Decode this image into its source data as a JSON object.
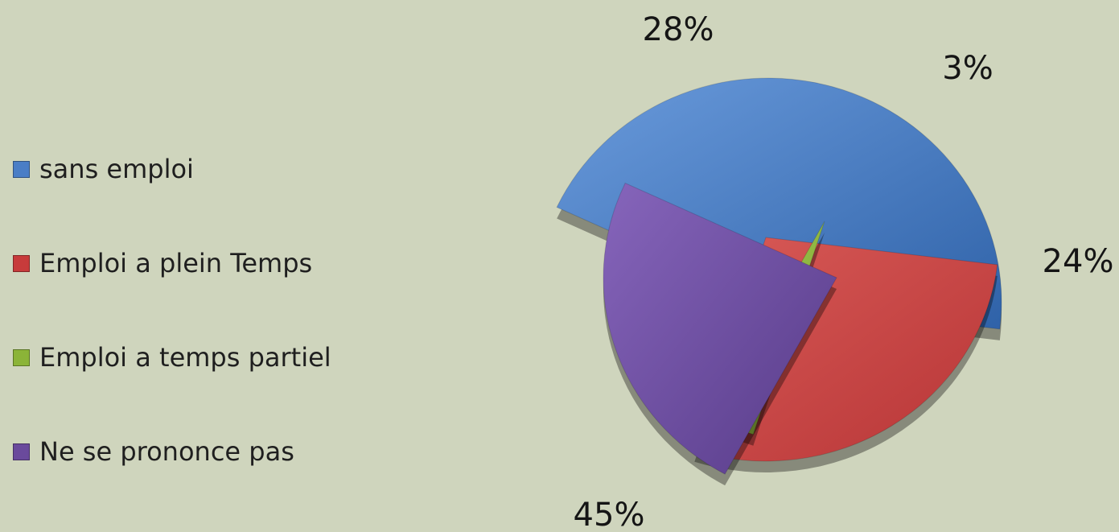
{
  "chart_data": {
    "type": "pie",
    "categories": [
      "sans emploi",
      "Emploi a plein Temps",
      "Emploi a temps partiel",
      "Ne se prononce pas"
    ],
    "values": [
      45,
      28,
      3,
      24
    ],
    "labels": [
      "45%",
      "28%",
      "3%",
      "24%"
    ],
    "colors": [
      "#4a7ec6",
      "#c73b3b",
      "#8bb438",
      "#6a4a9c"
    ],
    "legend": "left",
    "style": "3d exploded"
  }
}
